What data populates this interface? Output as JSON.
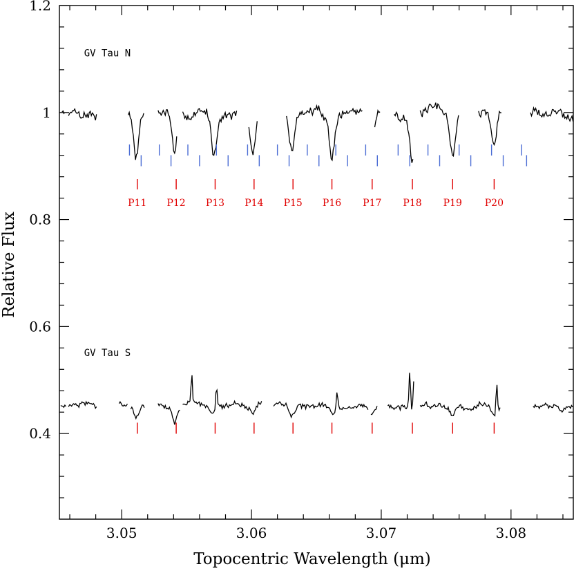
{
  "chart_data": {
    "type": "line",
    "title": "",
    "xlabel": "Topocentric Wavelength (μm)",
    "ylabel": "Relative Flux",
    "xlim": [
      3.0452,
      3.0848
    ],
    "ylim": [
      0.24,
      1.2
    ],
    "x_ticks_labeled": [
      "3.05",
      "3.06",
      "3.07",
      "3.08"
    ],
    "y_ticks_labeled": [
      "0.4",
      "0.6",
      "0.8",
      "1",
      "1.2"
    ],
    "colors": {
      "spectrum": "#000000",
      "telluric": "#4a6cd4",
      "pfund": "#e00000"
    },
    "series": [
      {
        "name": "GV Tau N",
        "baseline": 1.0,
        "segments": [
          [
            3.0454,
            3.0456
          ],
          [
            3.0459,
            3.0481
          ],
          [
            3.0505,
            3.0517
          ],
          [
            3.0528,
            3.0543
          ],
          [
            3.0547,
            3.0589
          ],
          [
            3.0598,
            3.0605
          ],
          [
            3.0627,
            3.0686
          ],
          [
            3.0695,
            3.0699
          ],
          [
            3.071,
            3.0725
          ],
          [
            3.073,
            3.076
          ],
          [
            3.0775,
            3.0793
          ],
          [
            3.0815,
            3.0848
          ]
        ],
        "absorptions": [
          {
            "x": 3.0511,
            "depth": 0.085
          },
          {
            "x": 3.0541,
            "depth": 0.085
          },
          {
            "x": 3.0571,
            "depth": 0.075
          },
          {
            "x": 3.0601,
            "depth": 0.09
          },
          {
            "x": 3.0631,
            "depth": 0.075
          },
          {
            "x": 3.0662,
            "depth": 0.085
          },
          {
            "x": 3.0692,
            "depth": 0.08
          },
          {
            "x": 3.0724,
            "depth": 0.1
          },
          {
            "x": 3.0755,
            "depth": 0.08
          },
          {
            "x": 3.0787,
            "depth": 0.06
          }
        ]
      },
      {
        "name": "GV Tau S",
        "baseline": 0.452,
        "segments": [
          [
            3.0453,
            3.0457
          ],
          [
            3.0459,
            3.0481
          ],
          [
            3.0498,
            3.0505
          ],
          [
            3.0507,
            3.0518
          ],
          [
            3.0528,
            3.0545
          ],
          [
            3.0547,
            3.0608
          ],
          [
            3.0617,
            3.069
          ],
          [
            3.0692,
            3.0697
          ],
          [
            3.0705,
            3.0725
          ],
          [
            3.073,
            3.0792
          ],
          [
            3.0817,
            3.0848
          ]
        ],
        "absorptions": [
          {
            "x": 3.0511,
            "depth": 0.02
          },
          {
            "x": 3.0541,
            "depth": 0.03
          },
          {
            "x": 3.0571,
            "depth": 0.015
          },
          {
            "x": 3.0601,
            "depth": 0.015
          },
          {
            "x": 3.0631,
            "depth": 0.02
          },
          {
            "x": 3.0662,
            "depth": 0.015
          },
          {
            "x": 3.0692,
            "depth": 0.015
          },
          {
            "x": 3.0724,
            "depth": 0.015
          },
          {
            "x": 3.0755,
            "depth": 0.015
          },
          {
            "x": 3.0787,
            "depth": 0.015
          }
        ],
        "spikes": [
          {
            "x": 3.0554,
            "height": 0.055
          },
          {
            "x": 3.0573,
            "height": 0.04
          },
          {
            "x": 3.0666,
            "height": 0.035
          },
          {
            "x": 3.0722,
            "height": 0.08
          },
          {
            "x": 3.0725,
            "height": 0.06
          },
          {
            "x": 3.0789,
            "height": 0.055
          }
        ]
      }
    ],
    "pfund_lines": [
      {
        "x": 3.0512,
        "label": "P11"
      },
      {
        "x": 3.0542,
        "label": "P12"
      },
      {
        "x": 3.0572,
        "label": "P13"
      },
      {
        "x": 3.0602,
        "label": "P14"
      },
      {
        "x": 3.0632,
        "label": "P15"
      },
      {
        "x": 3.0662,
        "label": "P16"
      },
      {
        "x": 3.0693,
        "label": "P17"
      },
      {
        "x": 3.0724,
        "label": "P18"
      },
      {
        "x": 3.0755,
        "label": "P19"
      },
      {
        "x": 3.0787,
        "label": "P20"
      }
    ],
    "telluric_markers": [
      {
        "x": 3.0506,
        "y": 0.93
      },
      {
        "x": 3.0515,
        "y": 0.91
      },
      {
        "x": 3.0529,
        "y": 0.93
      },
      {
        "x": 3.0538,
        "y": 0.91
      },
      {
        "x": 3.0551,
        "y": 0.93
      },
      {
        "x": 3.056,
        "y": 0.91
      },
      {
        "x": 3.0573,
        "y": 0.93
      },
      {
        "x": 3.0582,
        "y": 0.91
      },
      {
        "x": 3.0597,
        "y": 0.93
      },
      {
        "x": 3.0606,
        "y": 0.91
      },
      {
        "x": 3.062,
        "y": 0.93
      },
      {
        "x": 3.0629,
        "y": 0.91
      },
      {
        "x": 3.0643,
        "y": 0.93
      },
      {
        "x": 3.0652,
        "y": 0.91
      },
      {
        "x": 3.0665,
        "y": 0.93
      },
      {
        "x": 3.0674,
        "y": 0.91
      },
      {
        "x": 3.0688,
        "y": 0.93
      },
      {
        "x": 3.0697,
        "y": 0.91
      },
      {
        "x": 3.0713,
        "y": 0.93
      },
      {
        "x": 3.0722,
        "y": 0.91
      },
      {
        "x": 3.0736,
        "y": 0.93
      },
      {
        "x": 3.0745,
        "y": 0.91
      },
      {
        "x": 3.076,
        "y": 0.93
      },
      {
        "x": 3.0769,
        "y": 0.91
      },
      {
        "x": 3.0785,
        "y": 0.93
      },
      {
        "x": 3.0794,
        "y": 0.91
      },
      {
        "x": 3.0808,
        "y": 0.93
      },
      {
        "x": 3.0812,
        "y": 0.91
      }
    ],
    "annotations": [
      {
        "text": "GV Tau N",
        "x": 3.0471,
        "y": 1.105
      },
      {
        "text": "GV Tau S",
        "x": 3.0471,
        "y": 0.545
      }
    ]
  }
}
